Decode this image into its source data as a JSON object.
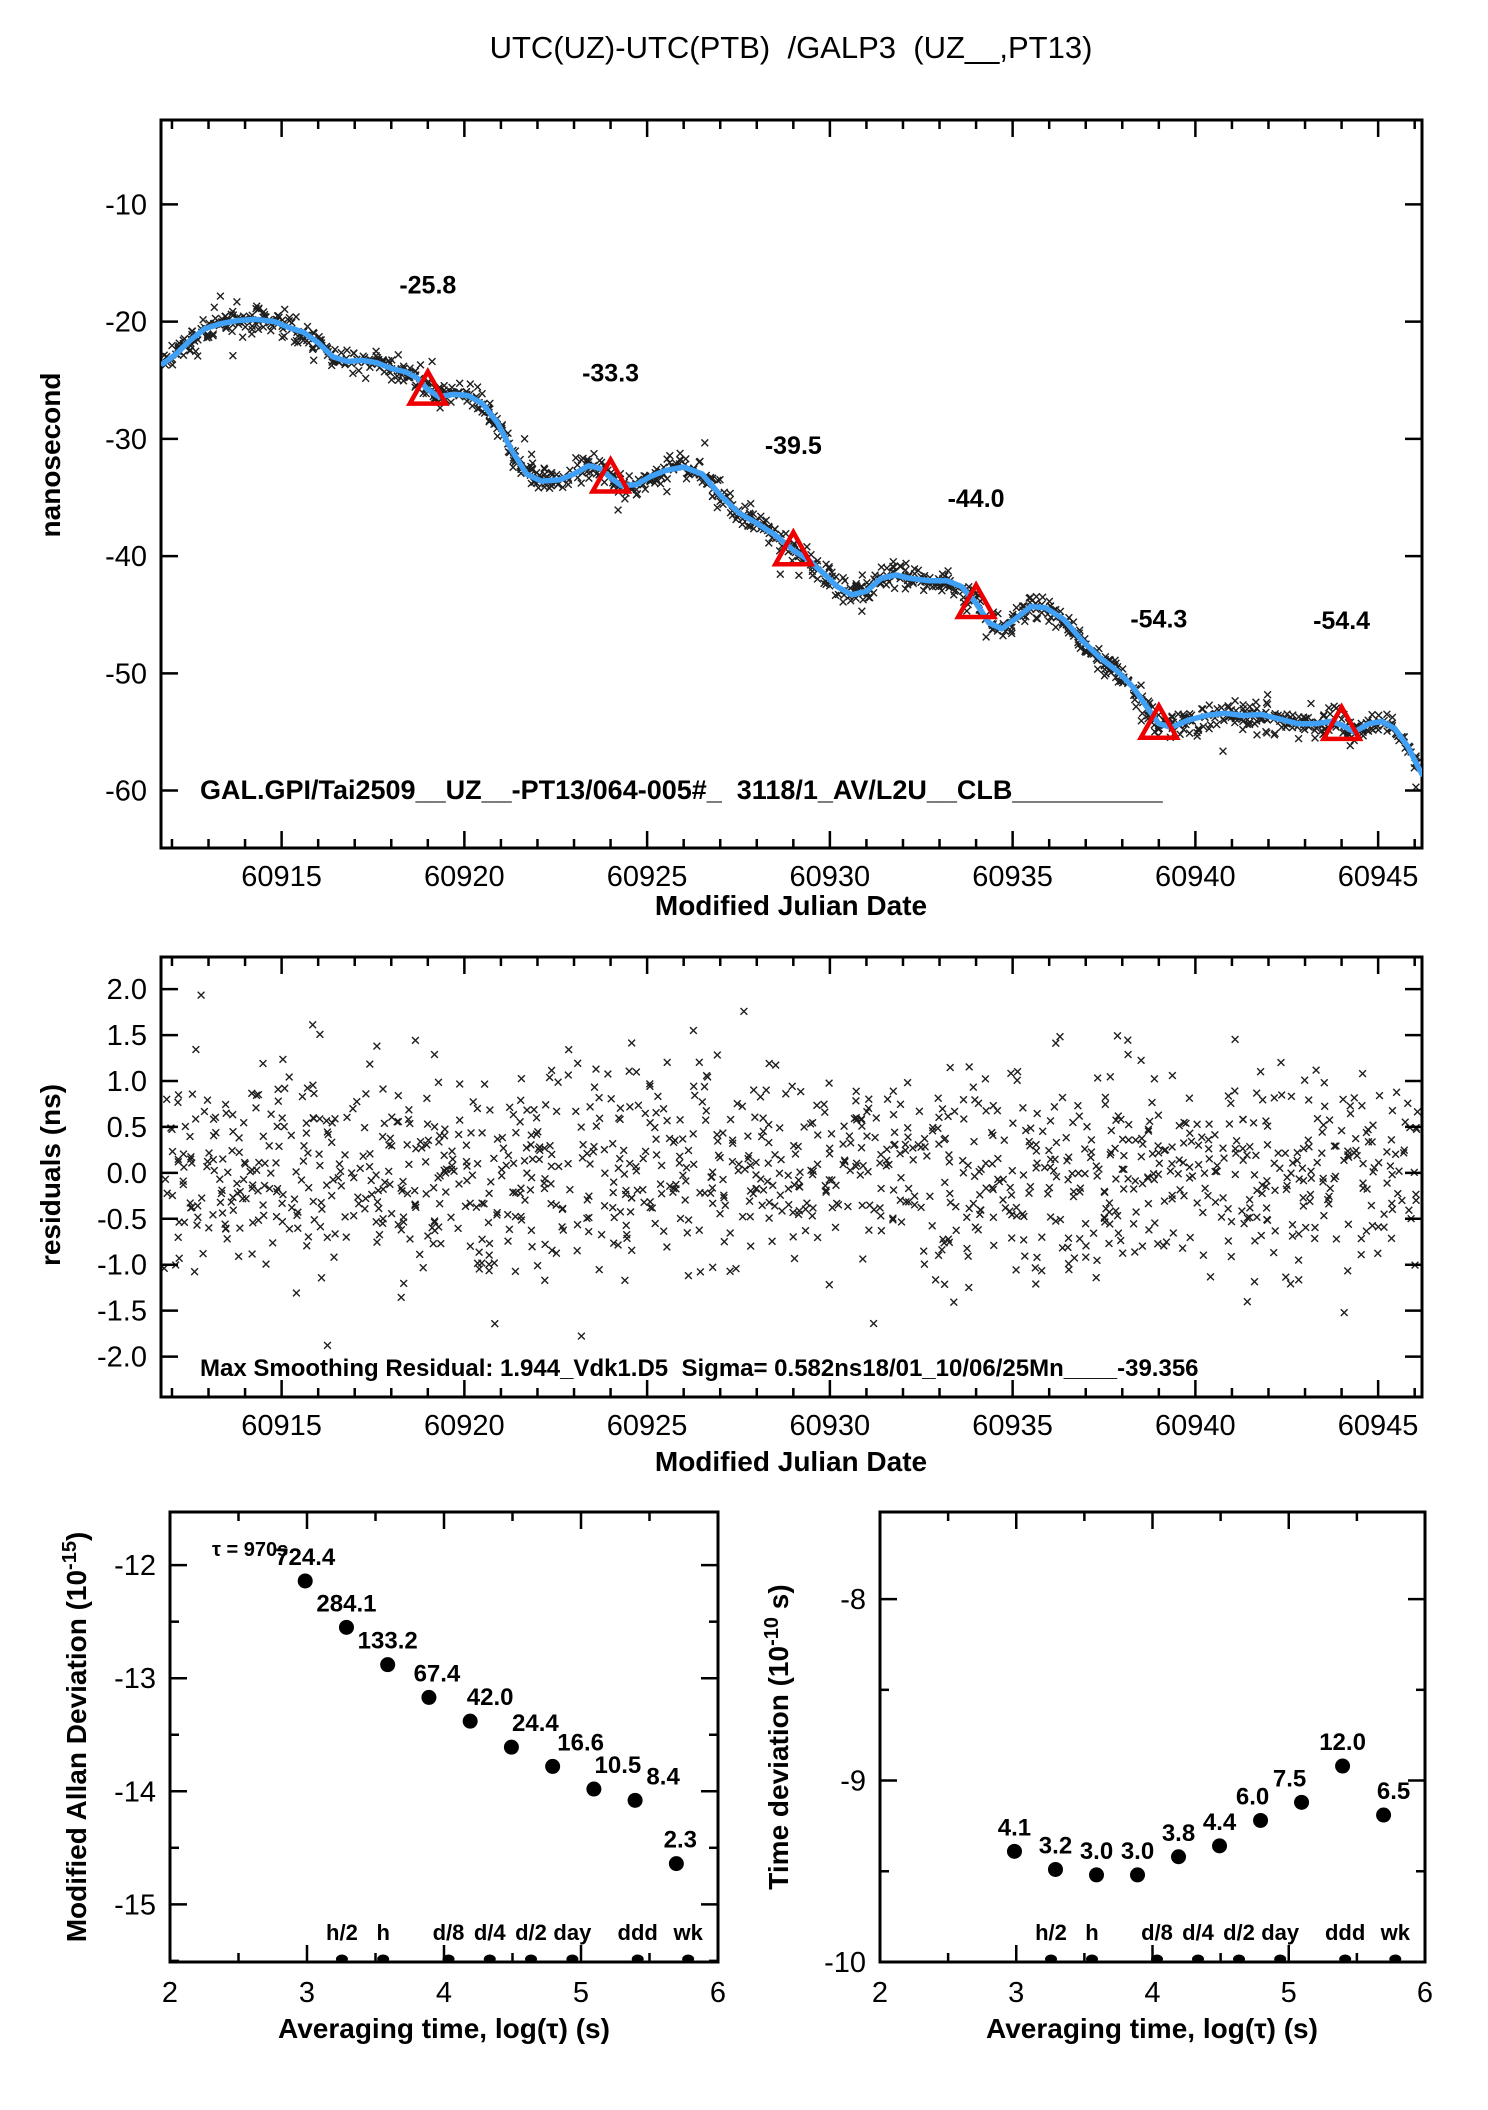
{
  "figure": {
    "title": "UTC(UZ)-UTC(PTB)  /GALP3  (UZ__,PT13)"
  },
  "colors": {
    "line_blue": "#3fa0f5",
    "annotation_red": "#ee0000",
    "marker_black": "#000000"
  },
  "chart_data": [
    {
      "id": "phase-difference",
      "type": "scatter",
      "xlabel": "Modified Julian Date",
      "ylabel": "nanosecond",
      "xlim": [
        60911.7,
        60946.2
      ],
      "ylim": [
        -64.9,
        -2.8
      ],
      "x_major_ticks": [
        60915,
        60920,
        60925,
        60930,
        60935,
        60940,
        60945
      ],
      "x_minor_step": 1,
      "y_major_ticks": [
        -10,
        -20,
        -30,
        -40,
        -50,
        -60
      ],
      "grid": false,
      "legend": "none",
      "annotation": "GAL.GPI/Tai2509__UZ__-PT13/064-005#_  3118/1_AV/L2U__CLB__________",
      "smoothed_line": [
        [
          60911.75,
          -23.6
        ],
        [
          60912.1,
          -22.8
        ],
        [
          60912.5,
          -21.6
        ],
        [
          60912.9,
          -20.6
        ],
        [
          60913.3,
          -20.2
        ],
        [
          60913.8,
          -19.9
        ],
        [
          60914.3,
          -19.8
        ],
        [
          60914.8,
          -20.0
        ],
        [
          60915.2,
          -20.5
        ],
        [
          60915.6,
          -20.9
        ],
        [
          60916.0,
          -21.8
        ],
        [
          60916.4,
          -23.0
        ],
        [
          60916.8,
          -23.4
        ],
        [
          60917.2,
          -23.3
        ],
        [
          60917.6,
          -23.5
        ],
        [
          60918.0,
          -24.0
        ],
        [
          60918.4,
          -24.3
        ],
        [
          60918.7,
          -24.8
        ],
        [
          60919.0,
          -25.8
        ],
        [
          60919.3,
          -26.4
        ],
        [
          60919.7,
          -26.2
        ],
        [
          60920.1,
          -26.3
        ],
        [
          60920.5,
          -27.0
        ],
        [
          60920.9,
          -28.6
        ],
        [
          60921.3,
          -31.0
        ],
        [
          60921.7,
          -33.0
        ],
        [
          60922.1,
          -33.6
        ],
        [
          60922.6,
          -33.5
        ],
        [
          60923.0,
          -33.0
        ],
        [
          60923.4,
          -32.3
        ],
        [
          60923.7,
          -32.5
        ],
        [
          60924.0,
          -33.3
        ],
        [
          60924.3,
          -34.0
        ],
        [
          60924.7,
          -33.9
        ],
        [
          60925.1,
          -33.2
        ],
        [
          60925.5,
          -32.7
        ],
        [
          60926.0,
          -32.4
        ],
        [
          60926.5,
          -33.0
        ],
        [
          60927.0,
          -34.8
        ],
        [
          60927.5,
          -36.3
        ],
        [
          60928.0,
          -37.2
        ],
        [
          60928.5,
          -38.2
        ],
        [
          60929.0,
          -39.5
        ],
        [
          60929.4,
          -40.3
        ],
        [
          60929.8,
          -41.4
        ],
        [
          60930.2,
          -42.6
        ],
        [
          60930.6,
          -43.3
        ],
        [
          60931.0,
          -43.0
        ],
        [
          60931.4,
          -41.9
        ],
        [
          60931.8,
          -41.6
        ],
        [
          60932.2,
          -41.9
        ],
        [
          60932.7,
          -42.1
        ],
        [
          60933.2,
          -42.1
        ],
        [
          60933.6,
          -42.6
        ],
        [
          60934.0,
          -44.0
        ],
        [
          60934.35,
          -45.7
        ],
        [
          60934.7,
          -46.2
        ],
        [
          60935.1,
          -45.3
        ],
        [
          60935.5,
          -44.3
        ],
        [
          60935.9,
          -44.4
        ],
        [
          60936.4,
          -45.4
        ],
        [
          60936.9,
          -47.2
        ],
        [
          60937.4,
          -48.7
        ],
        [
          60937.9,
          -49.9
        ],
        [
          60938.3,
          -51.2
        ],
        [
          60938.7,
          -53.0
        ],
        [
          60939.0,
          -54.3
        ],
        [
          60939.35,
          -54.6
        ],
        [
          60939.8,
          -54.0
        ],
        [
          60940.3,
          -53.6
        ],
        [
          60940.8,
          -53.4
        ],
        [
          60941.3,
          -53.6
        ],
        [
          60941.8,
          -53.5
        ],
        [
          60942.3,
          -53.9
        ],
        [
          60942.8,
          -54.3
        ],
        [
          60943.3,
          -54.3
        ],
        [
          60943.7,
          -54.1
        ],
        [
          60944.0,
          -54.4
        ],
        [
          60944.35,
          -55.0
        ],
        [
          60944.75,
          -54.3
        ],
        [
          60945.1,
          -54.1
        ],
        [
          60945.45,
          -54.7
        ],
        [
          60945.8,
          -56.2
        ],
        [
          60946.1,
          -58.0
        ],
        [
          60946.2,
          -58.6
        ]
      ],
      "calibration_markers": {
        "marker": "open-triangle",
        "points": [
          {
            "mjd": 60919,
            "ns": -25.8,
            "label": "-25.8"
          },
          {
            "mjd": 60924,
            "ns": -33.3,
            "label": "-33.3"
          },
          {
            "mjd": 60929,
            "ns": -39.5,
            "label": "-39.5"
          },
          {
            "mjd": 60934,
            "ns": -44.0,
            "label": "-44.0"
          },
          {
            "mjd": 60939,
            "ns": -54.3,
            "label": "-54.3"
          },
          {
            "mjd": 60944,
            "ns": -54.4,
            "label": "-54.4"
          }
        ]
      },
      "scatter_style": {
        "marker": "x",
        "sigma_ns": 0.55,
        "seed": 911,
        "session_step_days": 0.155,
        "session_span_days": 0.1,
        "points_per_session": [
          4,
          8
        ]
      }
    },
    {
      "id": "residuals",
      "type": "scatter",
      "xlabel": "Modified Julian Date",
      "ylabel": "residuals (ns)",
      "xlim": [
        60911.7,
        60946.2
      ],
      "ylim": [
        -2.44,
        2.35
      ],
      "x_major_ticks": [
        60915,
        60920,
        60925,
        60930,
        60935,
        60940,
        60945
      ],
      "x_minor_step": 1,
      "y_major_ticks": [
        2.0,
        1.5,
        1.0,
        0.5,
        0.0,
        -0.5,
        -1.0,
        -1.5,
        -2.0
      ],
      "y_tick_labels": [
        "2.0",
        "1.5",
        "1.0",
        "0.5",
        "0.0",
        "-0.5",
        "-1.0",
        "-1.5",
        "-2.0"
      ],
      "annotation": "Max Smoothing Residual: 1.944_Vdk1.D5  Sigma= 0.582ns18/01_10/06/25Mn____-39.356",
      "sigma_ns": 0.582,
      "seed": 412
    },
    {
      "id": "mdev",
      "type": "scatter",
      "xlabel": "Averaging time, log(τ) (s)",
      "ylabel_parts": {
        "main": "Modified Allan Deviation (10",
        "sup": "-15",
        "end": ")"
      },
      "xlim": [
        2,
        6
      ],
      "ylim": [
        -15.51,
        -11.53
      ],
      "x_major_ticks": [
        2,
        3,
        4,
        5,
        6
      ],
      "x_minor_step": 0.5,
      "y_major_ticks": [
        -12,
        -13,
        -14,
        -15
      ],
      "y_minor_step": 0.5,
      "tau_note": "τ = 970s",
      "points": [
        {
          "log_tau": 2.987,
          "log_val": -12.14,
          "label": "724.4",
          "ldx": 0
        },
        {
          "log_tau": 3.288,
          "log_val": -12.55,
          "label": "284.1",
          "ldx": 0
        },
        {
          "log_tau": 3.589,
          "log_val": -12.88,
          "label": "133.2",
          "ldx": 0
        },
        {
          "log_tau": 3.89,
          "log_val": -13.17,
          "label": "67.4",
          "ldx": 8
        },
        {
          "log_tau": 4.191,
          "log_val": -13.38,
          "label": "42.0",
          "ldx": 20
        },
        {
          "log_tau": 4.492,
          "log_val": -13.61,
          "label": "24.4",
          "ldx": 24
        },
        {
          "log_tau": 4.793,
          "log_val": -13.78,
          "label": "16.6",
          "ldx": 28
        },
        {
          "log_tau": 5.094,
          "log_val": -13.98,
          "label": "10.5",
          "ldx": 24
        },
        {
          "log_tau": 5.395,
          "log_val": -14.08,
          "label": "8.4",
          "ldx": 28
        },
        {
          "log_tau": 5.696,
          "log_val": -14.64,
          "label": "2.3",
          "ldx": 4
        }
      ],
      "tau_scale_marks": [
        {
          "label": "h/2",
          "log_tau": 3.255
        },
        {
          "label": "h",
          "log_tau": 3.556
        },
        {
          "label": "d/8",
          "log_tau": 4.033
        },
        {
          "label": "d/4",
          "log_tau": 4.334
        },
        {
          "label": "d/2",
          "log_tau": 4.635
        },
        {
          "label": "day",
          "log_tau": 4.937
        },
        {
          "label": "ddd",
          "log_tau": 5.414
        },
        {
          "label": "wk",
          "log_tau": 5.782
        }
      ]
    },
    {
      "id": "tdev",
      "type": "scatter",
      "xlabel": "Averaging time, log(τ) (s)",
      "ylabel_parts": {
        "main": "Time deviation (10",
        "sup": "-10",
        "end": " s)"
      },
      "xlim": [
        2,
        6
      ],
      "ylim": [
        -10.0,
        -7.52
      ],
      "x_major_ticks": [
        2,
        3,
        4,
        5,
        6
      ],
      "x_minor_step": 0.5,
      "y_major_ticks": [
        -8,
        -9,
        -10
      ],
      "y_minor_step": 0.5,
      "points": [
        {
          "log_tau": 2.987,
          "log_val": -9.39,
          "label": "4.1",
          "ldx": 0
        },
        {
          "log_tau": 3.288,
          "log_val": -9.49,
          "label": "3.2",
          "ldx": 0
        },
        {
          "log_tau": 3.589,
          "log_val": -9.52,
          "label": "3.0",
          "ldx": 0
        },
        {
          "log_tau": 3.89,
          "log_val": -9.52,
          "label": "3.0",
          "ldx": 0
        },
        {
          "log_tau": 4.191,
          "log_val": -9.42,
          "label": "3.8",
          "ldx": 0
        },
        {
          "log_tau": 4.492,
          "log_val": -9.36,
          "label": "4.4",
          "ldx": 0
        },
        {
          "log_tau": 4.793,
          "log_val": -9.22,
          "label": "6.0",
          "ldx": -8
        },
        {
          "log_tau": 5.094,
          "log_val": -9.12,
          "label": "7.5",
          "ldx": -12
        },
        {
          "log_tau": 5.395,
          "log_val": -8.92,
          "label": "12.0",
          "ldx": 0
        },
        {
          "log_tau": 5.696,
          "log_val": -9.19,
          "label": "6.5",
          "ldx": 10
        }
      ],
      "tau_scale_marks": [
        {
          "label": "h/2",
          "log_tau": 3.255
        },
        {
          "label": "h",
          "log_tau": 3.556
        },
        {
          "label": "d/8",
          "log_tau": 4.033
        },
        {
          "label": "d/4",
          "log_tau": 4.334
        },
        {
          "label": "d/2",
          "log_tau": 4.635
        },
        {
          "label": "day",
          "log_tau": 4.937
        },
        {
          "label": "ddd",
          "log_tau": 5.414
        },
        {
          "label": "wk",
          "log_tau": 5.782
        }
      ]
    }
  ]
}
